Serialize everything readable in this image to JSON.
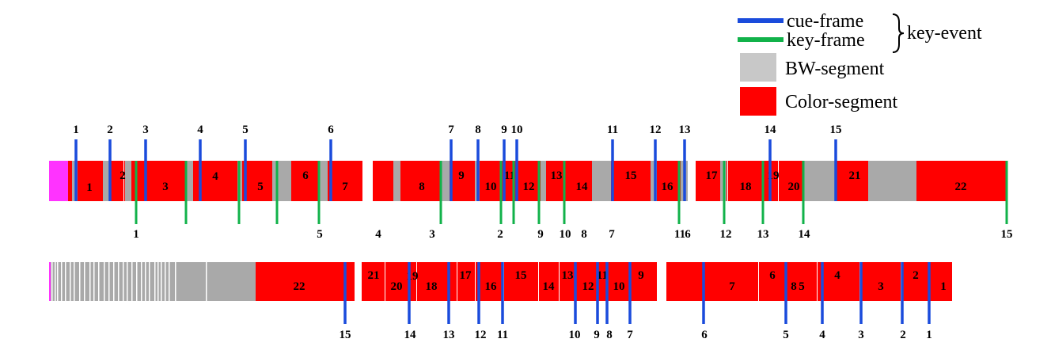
{
  "legend": {
    "cue_label": "cue-frame",
    "key_label": "key-frame",
    "event_label": "key-event",
    "bw_label": "BW-segment",
    "color_label": "Color-segment",
    "cue_color": "#1a4bdc",
    "key_color": "#11b24a",
    "bw_color": "#c8c8c8",
    "color_color": "#ff0000"
  },
  "colors": {
    "red": "#ff0000",
    "gray": "#a9a9a9",
    "magenta": "#ff33ff",
    "cue": "#1a4bdc",
    "key": "#11b24a"
  },
  "top_strip": {
    "segment_labels": [
      "1",
      "2",
      "3",
      "4",
      "5",
      "6",
      "7",
      "8",
      "9",
      "10",
      "11",
      "12",
      "13",
      "14",
      "15",
      "16",
      "17",
      "18",
      "19",
      "20",
      "21",
      "22"
    ],
    "cue_labels": [
      "1",
      "2",
      "3",
      "4",
      "5",
      "6",
      "7",
      "8",
      "9",
      "10",
      "11",
      "12",
      "13",
      "14",
      "15"
    ],
    "key_labels": [
      "1",
      "5",
      "4",
      "3",
      "2",
      "9",
      "10",
      "8",
      "7",
      "11",
      "6",
      "12",
      "13",
      "14",
      "15"
    ]
  },
  "bottom_strip": {
    "segment_labels": [
      "22",
      "21",
      "19",
      "20",
      "18",
      "17",
      "16",
      "15",
      "14",
      "13",
      "12",
      "11",
      "10",
      "9",
      "7",
      "6",
      "8",
      "5",
      "4",
      "3",
      "2",
      "1"
    ],
    "cue_labels": [
      "15",
      "14",
      "13",
      "12",
      "11",
      "10",
      "9",
      "8",
      "7",
      "6",
      "5",
      "4",
      "3",
      "2",
      "1"
    ]
  }
}
